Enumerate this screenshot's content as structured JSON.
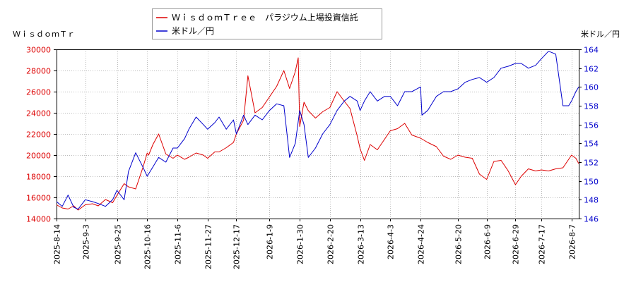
{
  "chart_data": {
    "type": "line",
    "left_axis_title": "ＷｉｓｄｏｍＴｒ",
    "right_axis_title": "米ドル／円",
    "x_labels": [
      "2025-8-14",
      "2025-9-3",
      "2025-9-25",
      "2025-10-16",
      "2025-11-6",
      "2025-11-27",
      "2025-12-17",
      "2026-1-9",
      "2026-1-30",
      "2026-2-20",
      "2026-3-13",
      "2026-4-3",
      "2026-4-24",
      "2026-5-20",
      "2026-6-9",
      "2026-6-29",
      "2026-7-17",
      "2026-8-7"
    ],
    "x_range": [
      "2025-8-14",
      "2026-8-12"
    ],
    "y_left": {
      "min": 14000,
      "max": 30000,
      "ticks": [
        14000,
        16000,
        18000,
        20000,
        22000,
        24000,
        26000,
        28000,
        30000
      ]
    },
    "y_right": {
      "min": 146,
      "max": 164,
      "ticks": [
        146,
        148,
        150,
        152,
        154,
        156,
        158,
        160,
        162,
        164
      ]
    },
    "grid": true,
    "legend_position": "top-center",
    "series": [
      {
        "name": "ＷｉｓｄｏｍＴｒｅｅ　パラジウム上場投資信託",
        "axis": "left",
        "color": "#dd0000",
        "x": [
          "2025-8-14",
          "2025-8-18",
          "2025-8-22",
          "2025-8-26",
          "2025-8-29",
          "2025-9-3",
          "2025-9-8",
          "2025-9-12",
          "2025-9-17",
          "2025-9-22",
          "2025-9-25",
          "2025-9-30",
          "2025-10-3",
          "2025-10-8",
          "2025-10-13",
          "2025-10-16",
          "2025-10-17",
          "2025-10-20",
          "2025-10-24",
          "2025-10-29",
          "2025-11-3",
          "2025-11-6",
          "2025-11-11",
          "2025-11-14",
          "2025-11-19",
          "2025-11-24",
          "2025-11-27",
          "2025-12-2",
          "2025-12-5",
          "2025-12-10",
          "2025-12-15",
          "2025-12-17",
          "2025-12-22",
          "2025-12-25",
          "2025-12-30",
          "2026-1-4",
          "2026-1-9",
          "2026-1-14",
          "2026-1-19",
          "2026-1-23",
          "2026-1-27",
          "2026-1-29",
          "2026-1-30",
          "2026-2-2",
          "2026-2-5",
          "2026-2-10",
          "2026-2-15",
          "2026-2-20",
          "2026-2-25",
          "2026-3-2",
          "2026-3-6",
          "2026-3-11",
          "2026-3-13",
          "2026-3-16",
          "2026-3-20",
          "2026-3-25",
          "2026-3-30",
          "2026-4-3",
          "2026-4-8",
          "2026-4-13",
          "2026-4-18",
          "2026-4-24",
          "2026-4-29",
          "2026-5-5",
          "2026-5-10",
          "2026-5-15",
          "2026-5-20",
          "2026-5-25",
          "2026-5-30",
          "2026-6-4",
          "2026-6-9",
          "2026-6-14",
          "2026-6-19",
          "2026-6-24",
          "2026-6-29",
          "2026-7-3",
          "2026-7-8",
          "2026-7-13",
          "2026-7-17",
          "2026-7-22",
          "2026-7-27",
          "2026-8-1",
          "2026-8-7",
          "2026-8-10",
          "2026-8-12"
        ],
        "values": [
          15300,
          15000,
          14900,
          15200,
          14800,
          15300,
          15400,
          15200,
          15800,
          15500,
          16200,
          17300,
          17000,
          16800,
          18800,
          20200,
          20000,
          21000,
          22000,
          20100,
          19700,
          20000,
          19600,
          19800,
          20200,
          20000,
          19700,
          20300,
          20300,
          20700,
          21200,
          22000,
          23300,
          27500,
          24000,
          24500,
          25500,
          26500,
          28000,
          26300,
          27900,
          29200,
          22700,
          25000,
          24200,
          23500,
          24100,
          24500,
          26000,
          25100,
          24400,
          21800,
          20600,
          19500,
          21000,
          20500,
          21500,
          22300,
          22500,
          23000,
          21900,
          21600,
          21200,
          20800,
          19900,
          19600,
          20000,
          19800,
          19700,
          18200,
          17700,
          19400,
          19500,
          18500,
          17200,
          18000,
          18700,
          18500,
          18600,
          18500,
          18700,
          18800,
          20000,
          19700,
          19200
        ]
      },
      {
        "name": "米ドル／円",
        "axis": "right",
        "color": "#0000cc",
        "x": [
          "2025-8-14",
          "2025-8-18",
          "2025-8-22",
          "2025-8-26",
          "2025-8-29",
          "2025-9-3",
          "2025-9-8",
          "2025-9-12",
          "2025-9-17",
          "2025-9-22",
          "2025-9-25",
          "2025-9-30",
          "2025-10-3",
          "2025-10-8",
          "2025-10-13",
          "2025-10-16",
          "2025-10-20",
          "2025-10-24",
          "2025-10-29",
          "2025-11-3",
          "2025-11-6",
          "2025-11-11",
          "2025-11-14",
          "2025-11-19",
          "2025-11-24",
          "2025-11-27",
          "2025-12-2",
          "2025-12-5",
          "2025-12-10",
          "2025-12-15",
          "2025-12-17",
          "2025-12-22",
          "2025-12-25",
          "2025-12-30",
          "2026-1-4",
          "2026-1-9",
          "2026-1-14",
          "2026-1-19",
          "2026-1-23",
          "2026-1-27",
          "2026-1-30",
          "2026-2-2",
          "2026-2-5",
          "2026-2-10",
          "2026-2-15",
          "2026-2-20",
          "2026-2-25",
          "2026-3-2",
          "2026-3-6",
          "2026-3-11",
          "2026-3-13",
          "2026-3-16",
          "2026-3-20",
          "2026-3-25",
          "2026-3-30",
          "2026-4-3",
          "2026-4-8",
          "2026-4-13",
          "2026-4-18",
          "2026-4-24",
          "2026-4-25",
          "2026-4-29",
          "2026-5-5",
          "2026-5-10",
          "2026-5-15",
          "2026-5-20",
          "2026-5-25",
          "2026-5-30",
          "2026-6-4",
          "2026-6-9",
          "2026-6-14",
          "2026-6-19",
          "2026-6-24",
          "2026-6-29",
          "2026-7-3",
          "2026-7-8",
          "2026-7-13",
          "2026-7-17",
          "2026-7-22",
          "2026-7-27",
          "2026-8-1",
          "2026-8-5",
          "2026-8-7",
          "2026-8-10",
          "2026-8-12"
        ],
        "values": [
          147.8,
          147.3,
          148.5,
          147.2,
          147.0,
          148.0,
          147.8,
          147.6,
          147.3,
          148.0,
          149.0,
          148.0,
          151.0,
          153.0,
          151.5,
          150.5,
          151.5,
          152.5,
          152.0,
          153.5,
          153.5,
          154.5,
          155.5,
          156.8,
          156.0,
          155.5,
          156.2,
          156.8,
          155.5,
          156.5,
          155.0,
          157.0,
          156.0,
          157.0,
          156.5,
          157.5,
          158.2,
          158.0,
          152.5,
          154.0,
          157.5,
          156.0,
          152.5,
          153.5,
          155.0,
          156.0,
          157.5,
          158.5,
          159.0,
          158.5,
          157.5,
          158.5,
          159.5,
          158.5,
          159.0,
          159.0,
          158.0,
          159.5,
          159.5,
          160.0,
          157.0,
          157.5,
          159.0,
          159.5,
          159.5,
          159.8,
          160.5,
          160.8,
          161.0,
          160.5,
          161.0,
          162.0,
          162.2,
          162.5,
          162.5,
          162.0,
          162.3,
          163.0,
          163.8,
          163.5,
          158.0,
          158.0,
          158.5,
          159.5,
          160.0
        ]
      }
    ]
  }
}
